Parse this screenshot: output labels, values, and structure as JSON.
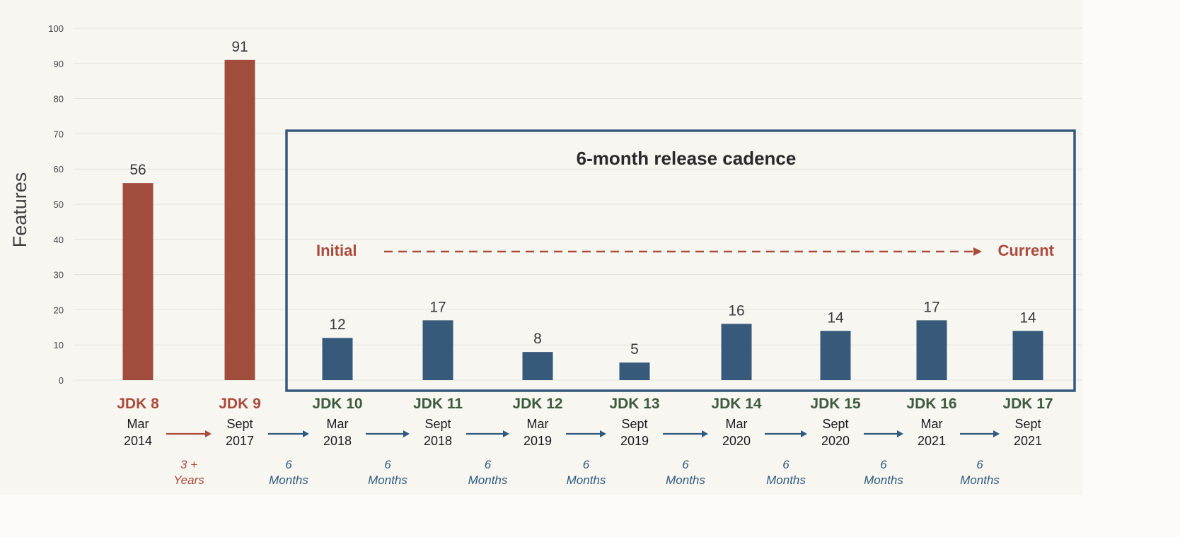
{
  "chart_data": {
    "type": "bar",
    "ylabel": "Features",
    "ylim": [
      0,
      100
    ],
    "yticks": [
      0,
      10,
      20,
      30,
      40,
      50,
      60,
      70,
      80,
      90,
      100
    ],
    "categories": [
      "JDK 8",
      "JDK 9",
      "JDK 10",
      "JDK 11",
      "JDK 12",
      "JDK 13",
      "JDK 14",
      "JDK 15",
      "JDK 16",
      "JDK 17"
    ],
    "release_month": [
      "Mar",
      "Sept",
      "Mar",
      "Sept",
      "Mar",
      "Sept",
      "Mar",
      "Sept",
      "Mar",
      "Sept"
    ],
    "release_year": [
      "2014",
      "2017",
      "2018",
      "2018",
      "2019",
      "2019",
      "2020",
      "2020",
      "2021",
      "2021"
    ],
    "values": [
      56,
      91,
      12,
      17,
      8,
      5,
      16,
      14,
      17,
      14
    ],
    "bar_colors": [
      "#a14d3e",
      "#a14d3e",
      "#37597a",
      "#37597a",
      "#37597a",
      "#37597a",
      "#37597a",
      "#37597a",
      "#37597a",
      "#37597a"
    ],
    "label_colors": [
      "#a94a3b",
      "#a94a3b",
      "#3d5a3f",
      "#3d5a3f",
      "#3d5a3f",
      "#3d5a3f",
      "#3d5a3f",
      "#3d5a3f",
      "#3d5a3f",
      "#3d5a3f"
    ],
    "intervals": [
      {
        "line1": "3 +",
        "line2": "Years",
        "color": "#a94a3b"
      },
      {
        "line1": "6",
        "line2": "Months",
        "color": "#2f5a7e"
      },
      {
        "line1": "6",
        "line2": "Months",
        "color": "#2f5a7e"
      },
      {
        "line1": "6",
        "line2": "Months",
        "color": "#2f5a7e"
      },
      {
        "line1": "6",
        "line2": "Months",
        "color": "#2f5a7e"
      },
      {
        "line1": "6",
        "line2": "Months",
        "color": "#2f5a7e"
      },
      {
        "line1": "6",
        "line2": "Months",
        "color": "#2f5a7e"
      },
      {
        "line1": "6",
        "line2": "Months",
        "color": "#2f5a7e"
      },
      {
        "line1": "6",
        "line2": "Months",
        "color": "#2f5a7e"
      }
    ],
    "annotation": {
      "title": "6-month release cadence",
      "from_label": "Initial",
      "to_label": "Current",
      "box_color": "#34597e",
      "arrow_color": "#a94a3b"
    },
    "grid": true
  }
}
